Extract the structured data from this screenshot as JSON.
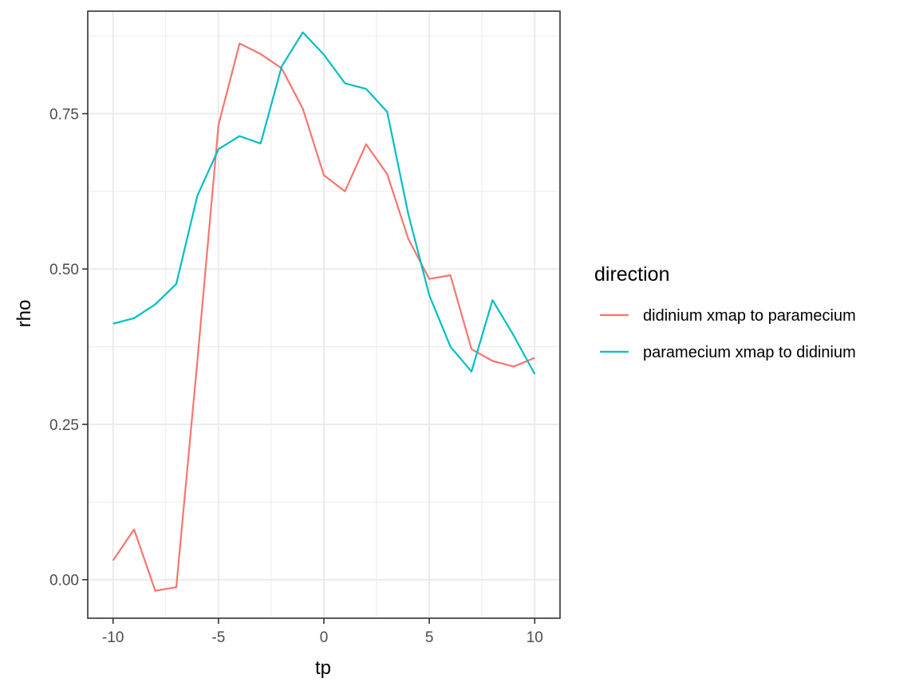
{
  "chart_data": {
    "type": "line",
    "xlabel": "tp",
    "ylabel": "rho",
    "xlim": [
      -11.2,
      11.2
    ],
    "ylim": [
      -0.062,
      0.915
    ],
    "x_ticks": [
      -10,
      -5,
      0,
      5,
      10
    ],
    "x_tick_labels": [
      "-10",
      "-5",
      "0",
      "5",
      "10"
    ],
    "y_ticks": [
      0,
      0.25,
      0.5,
      0.75
    ],
    "y_tick_labels": [
      "0.00",
      "0.25",
      "0.50",
      "0.75"
    ],
    "grid": true,
    "legend": {
      "title": "direction",
      "position": "right"
    },
    "x": [
      -10,
      -9,
      -8,
      -7,
      -6,
      -5,
      -4,
      -3,
      -2,
      -1,
      0,
      1,
      2,
      3,
      4,
      5,
      6,
      7,
      8,
      9,
      10
    ],
    "series": [
      {
        "name": "didinium xmap to paramecium",
        "color": "#F8766D",
        "values": [
          0.031,
          0.081,
          -0.018,
          -0.012,
          0.352,
          0.732,
          0.863,
          0.846,
          0.823,
          0.758,
          0.651,
          0.625,
          0.701,
          0.653,
          0.549,
          0.484,
          0.49,
          0.371,
          0.352,
          0.343,
          0.357
        ]
      },
      {
        "name": "paramecium xmap to didinium",
        "color": "#00BFC4",
        "values": [
          0.412,
          0.421,
          0.443,
          0.476,
          0.618,
          0.693,
          0.714,
          0.702,
          0.826,
          0.881,
          0.845,
          0.799,
          0.79,
          0.753,
          0.589,
          0.458,
          0.375,
          0.335,
          0.45,
          0.393,
          0.331
        ]
      }
    ]
  }
}
